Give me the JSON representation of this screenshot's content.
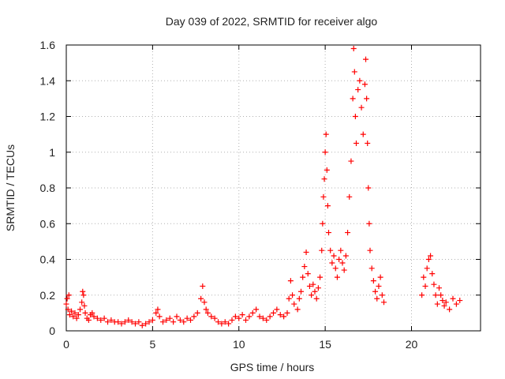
{
  "chart_data": {
    "type": "scatter",
    "title": "Day 039 of 2022, SRMTID for receiver algo",
    "xlabel": "GPS time / hours",
    "ylabel": "SRMTID / TECUs",
    "xlim": [
      0,
      24
    ],
    "ylim": [
      0,
      1.6
    ],
    "x_ticks": [
      0,
      5,
      10,
      15,
      20
    ],
    "x_tick_labels": [
      "0",
      "5",
      "10",
      "15",
      "20"
    ],
    "y_ticks": [
      0,
      0.2,
      0.4,
      0.6,
      0.8,
      1.0,
      1.2,
      1.4,
      1.6
    ],
    "y_tick_labels": [
      "0",
      "0.2",
      "0.4",
      "0.6",
      "0.8",
      "1",
      "1.2",
      "1.4",
      "1.6"
    ],
    "grid": true,
    "marker": "+",
    "color": "#ff0000",
    "series": [
      {
        "name": "SRMTID",
        "points": [
          [
            0.0,
            0.15
          ],
          [
            0.05,
            0.18
          ],
          [
            0.1,
            0.12
          ],
          [
            0.15,
            0.2
          ],
          [
            0.2,
            0.09
          ],
          [
            0.3,
            0.11
          ],
          [
            0.4,
            0.08
          ],
          [
            0.5,
            0.1
          ],
          [
            0.6,
            0.07
          ],
          [
            0.7,
            0.09
          ],
          [
            0.8,
            0.12
          ],
          [
            0.9,
            0.16
          ],
          [
            0.95,
            0.22
          ],
          [
            1.0,
            0.2
          ],
          [
            1.05,
            0.14
          ],
          [
            1.1,
            0.1
          ],
          [
            1.2,
            0.07
          ],
          [
            1.3,
            0.06
          ],
          [
            1.4,
            0.09
          ],
          [
            1.5,
            0.1
          ],
          [
            1.6,
            0.08
          ],
          [
            1.8,
            0.07
          ],
          [
            2.0,
            0.06
          ],
          [
            2.2,
            0.07
          ],
          [
            2.4,
            0.05
          ],
          [
            2.6,
            0.06
          ],
          [
            2.8,
            0.05
          ],
          [
            3.0,
            0.05
          ],
          [
            3.2,
            0.04
          ],
          [
            3.4,
            0.05
          ],
          [
            3.6,
            0.06
          ],
          [
            3.8,
            0.05
          ],
          [
            4.0,
            0.04
          ],
          [
            4.2,
            0.05
          ],
          [
            4.4,
            0.03
          ],
          [
            4.6,
            0.04
          ],
          [
            4.8,
            0.05
          ],
          [
            5.0,
            0.06
          ],
          [
            5.2,
            0.1
          ],
          [
            5.3,
            0.12
          ],
          [
            5.4,
            0.08
          ],
          [
            5.6,
            0.05
          ],
          [
            5.8,
            0.06
          ],
          [
            6.0,
            0.07
          ],
          [
            6.2,
            0.05
          ],
          [
            6.4,
            0.08
          ],
          [
            6.6,
            0.06
          ],
          [
            6.8,
            0.05
          ],
          [
            7.0,
            0.07
          ],
          [
            7.2,
            0.06
          ],
          [
            7.4,
            0.08
          ],
          [
            7.6,
            0.1
          ],
          [
            7.8,
            0.18
          ],
          [
            7.9,
            0.25
          ],
          [
            8.0,
            0.16
          ],
          [
            8.1,
            0.12
          ],
          [
            8.2,
            0.1
          ],
          [
            8.4,
            0.08
          ],
          [
            8.6,
            0.07
          ],
          [
            8.8,
            0.05
          ],
          [
            9.0,
            0.04
          ],
          [
            9.2,
            0.05
          ],
          [
            9.4,
            0.04
          ],
          [
            9.6,
            0.06
          ],
          [
            9.8,
            0.08
          ],
          [
            10.0,
            0.07
          ],
          [
            10.2,
            0.09
          ],
          [
            10.4,
            0.06
          ],
          [
            10.6,
            0.08
          ],
          [
            10.8,
            0.1
          ],
          [
            11.0,
            0.12
          ],
          [
            11.2,
            0.08
          ],
          [
            11.4,
            0.07
          ],
          [
            11.6,
            0.06
          ],
          [
            11.8,
            0.08
          ],
          [
            12.0,
            0.1
          ],
          [
            12.2,
            0.12
          ],
          [
            12.4,
            0.09
          ],
          [
            12.6,
            0.08
          ],
          [
            12.8,
            0.1
          ],
          [
            12.9,
            0.18
          ],
          [
            13.0,
            0.28
          ],
          [
            13.1,
            0.2
          ],
          [
            13.2,
            0.15
          ],
          [
            13.4,
            0.12
          ],
          [
            13.5,
            0.18
          ],
          [
            13.6,
            0.22
          ],
          [
            13.7,
            0.3
          ],
          [
            13.8,
            0.36
          ],
          [
            13.9,
            0.44
          ],
          [
            14.0,
            0.32
          ],
          [
            14.1,
            0.25
          ],
          [
            14.2,
            0.2
          ],
          [
            14.3,
            0.26
          ],
          [
            14.4,
            0.22
          ],
          [
            14.5,
            0.18
          ],
          [
            14.6,
            0.24
          ],
          [
            14.7,
            0.3
          ],
          [
            14.8,
            0.45
          ],
          [
            14.85,
            0.6
          ],
          [
            14.9,
            0.75
          ],
          [
            14.95,
            0.85
          ],
          [
            15.0,
            1.0
          ],
          [
            15.05,
            1.1
          ],
          [
            15.1,
            0.9
          ],
          [
            15.15,
            0.7
          ],
          [
            15.2,
            0.55
          ],
          [
            15.3,
            0.45
          ],
          [
            15.4,
            0.38
          ],
          [
            15.5,
            0.42
          ],
          [
            15.6,
            0.35
          ],
          [
            15.7,
            0.3
          ],
          [
            15.8,
            0.4
          ],
          [
            15.9,
            0.45
          ],
          [
            16.0,
            0.38
          ],
          [
            16.1,
            0.34
          ],
          [
            16.2,
            0.42
          ],
          [
            16.3,
            0.55
          ],
          [
            16.4,
            0.75
          ],
          [
            16.5,
            0.95
          ],
          [
            16.6,
            1.3
          ],
          [
            16.65,
            1.58
          ],
          [
            16.7,
            1.45
          ],
          [
            16.75,
            1.2
          ],
          [
            16.8,
            1.05
          ],
          [
            16.9,
            1.35
          ],
          [
            17.0,
            1.4
          ],
          [
            17.1,
            1.25
          ],
          [
            17.2,
            1.1
          ],
          [
            17.3,
            1.38
          ],
          [
            17.35,
            1.52
          ],
          [
            17.4,
            1.3
          ],
          [
            17.45,
            1.05
          ],
          [
            17.5,
            0.8
          ],
          [
            17.55,
            0.6
          ],
          [
            17.6,
            0.45
          ],
          [
            17.7,
            0.35
          ],
          [
            17.8,
            0.28
          ],
          [
            17.9,
            0.22
          ],
          [
            18.0,
            0.18
          ],
          [
            18.1,
            0.25
          ],
          [
            18.2,
            0.3
          ],
          [
            18.3,
            0.2
          ],
          [
            18.4,
            0.16
          ],
          [
            20.6,
            0.2
          ],
          [
            20.7,
            0.3
          ],
          [
            20.8,
            0.25
          ],
          [
            20.9,
            0.35
          ],
          [
            21.0,
            0.4
          ],
          [
            21.1,
            0.42
          ],
          [
            21.2,
            0.32
          ],
          [
            21.3,
            0.26
          ],
          [
            21.4,
            0.2
          ],
          [
            21.5,
            0.15
          ],
          [
            21.6,
            0.24
          ],
          [
            21.7,
            0.2
          ],
          [
            21.8,
            0.17
          ],
          [
            21.9,
            0.14
          ],
          [
            22.0,
            0.16
          ],
          [
            22.2,
            0.12
          ],
          [
            22.4,
            0.18
          ],
          [
            22.6,
            0.15
          ],
          [
            22.8,
            0.17
          ]
        ]
      }
    ]
  }
}
